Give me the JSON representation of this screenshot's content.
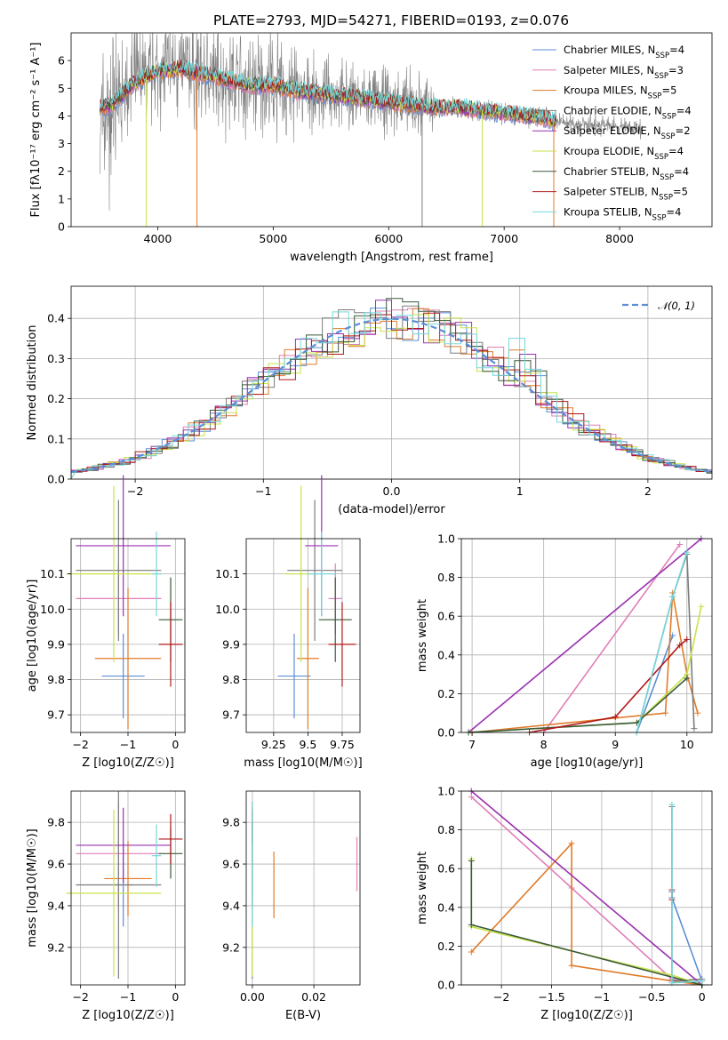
{
  "figure": {
    "title": "PLATE=2793, MJD=54271, FIBERID=0193, z=0.076",
    "models": [
      {
        "name": "Chabrier MILES",
        "nssp": "4",
        "color": "#5b8ed6"
      },
      {
        "name": "Salpeter MILES",
        "nssp": "3",
        "color": "#e07fb8"
      },
      {
        "name": "Kroupa MILES",
        "nssp": "5",
        "color": "#e07b2a"
      },
      {
        "name": "Chabrier ELODIE",
        "nssp": "4",
        "color": "#7c7c7c"
      },
      {
        "name": "Salpeter ELODIE",
        "nssp": "2",
        "color": "#9b30b0"
      },
      {
        "name": "Kroupa ELODIE",
        "nssp": "4",
        "color": "#c8e24a"
      },
      {
        "name": "Chabrier STELIB",
        "nssp": "4",
        "color": "#3a5a3a"
      },
      {
        "name": "Salpeter STELIB",
        "nssp": "5",
        "color": "#b01818"
      },
      {
        "name": "Kroupa STELIB",
        "nssp": "4",
        "color": "#74d8dc"
      }
    ],
    "data_color": "#808080"
  },
  "chart_data": [
    {
      "id": "spectrum",
      "type": "line",
      "xlabel": "wavelength [Angstrom, rest frame]",
      "ylabel": "Flux [f_λ10^-17 erg cm^-2 s^-1 A^-1]",
      "xlim": [
        3250,
        8800
      ],
      "ylim": [
        0,
        7
      ],
      "xticks": [
        4000,
        5000,
        6000,
        7000,
        8000
      ],
      "yticks": [
        0,
        1,
        2,
        3,
        4,
        5,
        6
      ],
      "grid": false,
      "legend_position": "upper-right",
      "continuum_model": {
        "x": [
          3500,
          3600,
          3700,
          3800,
          3900,
          4000,
          4200,
          4400,
          4600,
          4800,
          5000,
          5200,
          5400,
          5600,
          5800,
          6000,
          6200,
          6400,
          6600,
          6800,
          7000,
          7200,
          7400
        ],
        "y": [
          4.3,
          4.4,
          4.8,
          5.2,
          5.4,
          5.6,
          5.7,
          5.5,
          5.3,
          5.1,
          5.1,
          4.9,
          4.8,
          4.7,
          4.6,
          4.5,
          4.4,
          4.3,
          4.3,
          4.2,
          4.1,
          4.0,
          3.9
        ]
      },
      "observed_data_range": [
        3500,
        8200
      ],
      "model_range": [
        3500,
        7450
      ]
    },
    {
      "id": "residuals",
      "type": "histogram",
      "xlabel": "(data-model)/error",
      "ylabel": "Normed distribution",
      "xlim": [
        -2.5,
        2.5
      ],
      "ylim": [
        0,
        0.48
      ],
      "xticks": [
        -2,
        -1,
        0,
        1,
        2
      ],
      "yticks": [
        0.0,
        0.1,
        0.2,
        0.3,
        0.4
      ],
      "grid": true,
      "legend_position": "upper-right",
      "legend_label": "𝒩(0, 1)",
      "normal_curve": {
        "mean": 0,
        "sigma": 1
      }
    },
    {
      "id": "age_vs_Z",
      "type": "errorbar",
      "xlabel": "Z [log10(Z/Z☉)]",
      "ylabel": "age  [log10(age/yr)]",
      "xlim": [
        -2.2,
        0.2
      ],
      "ylim": [
        9.65,
        10.2
      ],
      "xticks": [
        -2,
        -1,
        0
      ],
      "yticks": [
        9.7,
        9.8,
        9.9,
        10.0,
        10.1
      ],
      "grid": true,
      "points": [
        {
          "x": -1.1,
          "xerr": 0.45,
          "y": 9.81,
          "yerr": 0.12
        },
        {
          "x": -1.2,
          "xerr": 0.9,
          "y": 10.03,
          "yerr": 0.1
        },
        {
          "x": -1.0,
          "xerr": 0.7,
          "y": 9.86,
          "yerr": 0.2
        },
        {
          "x": -1.2,
          "xerr": 0.9,
          "y": 10.11,
          "yerr": 0.2
        },
        {
          "x": -1.1,
          "xerr": 1.0,
          "y": 10.18,
          "yerr": 0.2
        },
        {
          "x": -1.3,
          "xerr": 1.0,
          "y": 10.1,
          "yerr": 0.25
        },
        {
          "x": -0.1,
          "xerr": 0.25,
          "y": 9.97,
          "yerr": 0.12
        },
        {
          "x": -0.1,
          "xerr": 0.25,
          "y": 9.9,
          "yerr": 0.12
        },
        {
          "x": -0.4,
          "xerr": 0.1,
          "y": 10.1,
          "yerr": 0.12
        }
      ]
    },
    {
      "id": "age_vs_mass",
      "type": "errorbar",
      "xlabel": "mass [log10(M/M☉)]",
      "ylabel": "",
      "xlim": [
        9.05,
        9.88
      ],
      "ylim": [
        9.65,
        10.2
      ],
      "xticks": [
        9.25,
        9.5,
        9.75
      ],
      "yticks": [
        9.7,
        9.8,
        9.9,
        10.0,
        10.1
      ],
      "grid": true,
      "points": [
        {
          "x": 9.4,
          "xerr": 0.12,
          "y": 9.81,
          "yerr": 0.12
        },
        {
          "x": 9.7,
          "xerr": 0.05,
          "y": 10.03,
          "yerr": 0.1
        },
        {
          "x": 9.5,
          "xerr": 0.08,
          "y": 9.86,
          "yerr": 0.2
        },
        {
          "x": 9.55,
          "xerr": 0.2,
          "y": 10.11,
          "yerr": 0.2
        },
        {
          "x": 9.6,
          "xerr": 0.12,
          "y": 10.18,
          "yerr": 0.2
        },
        {
          "x": 9.45,
          "xerr": 0.12,
          "y": 10.1,
          "yerr": 0.25
        },
        {
          "x": 9.7,
          "xerr": 0.12,
          "y": 9.97,
          "yerr": 0.12
        },
        {
          "x": 9.75,
          "xerr": 0.1,
          "y": 9.9,
          "yerr": 0.12
        },
        {
          "x": 9.6,
          "xerr": 0.1,
          "y": 10.1,
          "yerr": 0.12
        }
      ]
    },
    {
      "id": "weight_vs_age",
      "type": "line",
      "xlabel": "age  [log10(age/yr)]",
      "ylabel": "mass weight",
      "xlim": [
        6.85,
        10.35
      ],
      "ylim": [
        0,
        1.0
      ],
      "xticks": [
        7,
        8,
        9,
        10
      ],
      "yticks": [
        0.0,
        0.2,
        0.4,
        0.6,
        0.8,
        1.0
      ],
      "grid": true,
      "series": [
        {
          "x": [
            9.3,
            9.8
          ],
          "y": [
            0.0,
            0.5
          ]
        },
        {
          "x": [
            8.0,
            9.9
          ],
          "y": [
            0.0,
            0.97
          ]
        },
        {
          "x": [
            7.0,
            9.7,
            9.8,
            10.0,
            10.15
          ],
          "y": [
            0.0,
            0.1,
            0.72,
            0.3,
            0.1
          ]
        },
        {
          "x": [
            9.3,
            9.8,
            10.0,
            10.1
          ],
          "y": [
            0.0,
            0.7,
            0.92,
            0.02
          ]
        },
        {
          "x": [
            6.95,
            10.2
          ],
          "y": [
            0.0,
            1.0
          ]
        },
        {
          "x": [
            6.95,
            9.3,
            10.0,
            10.2
          ],
          "y": [
            0.0,
            0.05,
            0.3,
            0.65
          ]
        },
        {
          "x": [
            6.95,
            9.3,
            10.0
          ],
          "y": [
            0.0,
            0.05,
            0.28
          ]
        },
        {
          "x": [
            7.8,
            9.0,
            9.9,
            10.0
          ],
          "y": [
            0.0,
            0.08,
            0.45,
            0.48
          ]
        },
        {
          "x": [
            9.3,
            9.8,
            10.0
          ],
          "y": [
            0.0,
            0.7,
            0.93
          ]
        }
      ]
    },
    {
      "id": "mass_vs_Z",
      "type": "errorbar",
      "xlabel": "Z [log10(Z/Z☉)]",
      "ylabel": "mass [log10(M/M☉)]",
      "xlim": [
        -2.2,
        0.2
      ],
      "ylim": [
        9.02,
        9.95
      ],
      "xticks": [
        -2,
        -1,
        0
      ],
      "yticks": [
        9.2,
        9.4,
        9.6,
        9.8
      ],
      "grid": true,
      "points": [
        {
          "x": -1.1,
          "xerr": 0.2,
          "y": 9.5,
          "yerr": 0.2
        },
        {
          "x": -1.2,
          "xerr": 0.9,
          "y": 9.65,
          "yerr": 0.25
        },
        {
          "x": -1.0,
          "xerr": 0.5,
          "y": 9.53,
          "yerr": 0.18
        },
        {
          "x": -1.2,
          "xerr": 0.9,
          "y": 9.5,
          "yerr": 0.45
        },
        {
          "x": -1.1,
          "xerr": 1.0,
          "y": 9.69,
          "yerr": 0.18
        },
        {
          "x": -1.3,
          "xerr": 1.0,
          "y": 9.46,
          "yerr": 0.4
        },
        {
          "x": -0.1,
          "xerr": 0.25,
          "y": 9.65,
          "yerr": 0.12
        },
        {
          "x": -0.1,
          "xerr": 0.25,
          "y": 9.72,
          "yerr": 0.12
        },
        {
          "x": -0.4,
          "xerr": 0.1,
          "y": 9.64,
          "yerr": 0.15
        }
      ]
    },
    {
      "id": "mass_vs_ebv",
      "type": "errorbar",
      "xlabel": "E(B-V)",
      "ylabel": "",
      "xlim": [
        -0.002,
        0.035
      ],
      "ylim": [
        9.02,
        9.95
      ],
      "xticks": [
        0.0,
        0.02
      ],
      "yticks": [
        9.2,
        9.4,
        9.6,
        9.8
      ],
      "grid": true,
      "points": [
        {
          "x": 0.0,
          "xerr": 0,
          "y": 9.65,
          "yerr": 0.2
        },
        {
          "x": 0.034,
          "xerr": 0,
          "y": 9.6,
          "yerr": 0.13
        },
        {
          "x": 0.007,
          "xerr": 0,
          "y": 9.5,
          "yerr": 0.16
        },
        {
          "x": 0.0,
          "xerr": 0,
          "y": 9.45,
          "yerr": 0.4
        },
        {
          "x": 0.0,
          "xerr": 0,
          "y": 9.75,
          "yerr": 0.12
        },
        {
          "x": 0.0,
          "xerr": 0,
          "y": 9.46,
          "yerr": 0.4
        },
        {
          "x": 0.0,
          "xerr": 0,
          "y": 9.6,
          "yerr": 0.2
        },
        {
          "x": 0.0,
          "xerr": 0,
          "y": 9.8,
          "yerr": 0.1
        },
        {
          "x": 0.0,
          "xerr": 0,
          "y": 9.6,
          "yerr": 0.3
        }
      ]
    },
    {
      "id": "weight_vs_Z",
      "type": "line",
      "xlabel": "Z [log10(Z/Z☉)]",
      "ylabel": "mass weight",
      "xlim": [
        -2.4,
        0.1
      ],
      "ylim": [
        0,
        1.0
      ],
      "xticks": [
        -2.0,
        -1.5,
        -1.0,
        -0.5,
        0.0
      ],
      "yticks": [
        0.0,
        0.2,
        0.4,
        0.6,
        0.8,
        1.0
      ],
      "grid": true,
      "series": [
        {
          "x": [
            -0.3,
            -0.3,
            0.0
          ],
          "y": [
            0.48,
            0.45,
            0.02
          ]
        },
        {
          "x": [
            -2.3,
            -1.3,
            -0.3,
            0.0
          ],
          "y": [
            0.97,
            0.5,
            0.03,
            0.0
          ]
        },
        {
          "x": [
            -2.3,
            -1.3,
            -1.3,
            -0.3,
            0.0
          ],
          "y": [
            0.17,
            0.73,
            0.1,
            0.02,
            0.0
          ]
        },
        {
          "x": [
            -0.3,
            -0.3,
            0.0
          ],
          "y": [
            0.92,
            0.02,
            0.03
          ]
        },
        {
          "x": [
            -2.3,
            0.0
          ],
          "y": [
            1.0,
            0.0
          ]
        },
        {
          "x": [
            -2.3,
            -2.3,
            -0.3,
            0.0
          ],
          "y": [
            0.65,
            0.3,
            0.05,
            0.0
          ]
        },
        {
          "x": [
            -2.3,
            -2.3,
            0.0
          ],
          "y": [
            0.64,
            0.31,
            0.0
          ]
        },
        {
          "x": [
            -0.3,
            -0.3
          ],
          "y": [
            0.49,
            0.44
          ]
        },
        {
          "x": [
            -0.3,
            -0.3,
            0.0
          ],
          "y": [
            0.93,
            0.01,
            0.02
          ]
        }
      ]
    }
  ]
}
